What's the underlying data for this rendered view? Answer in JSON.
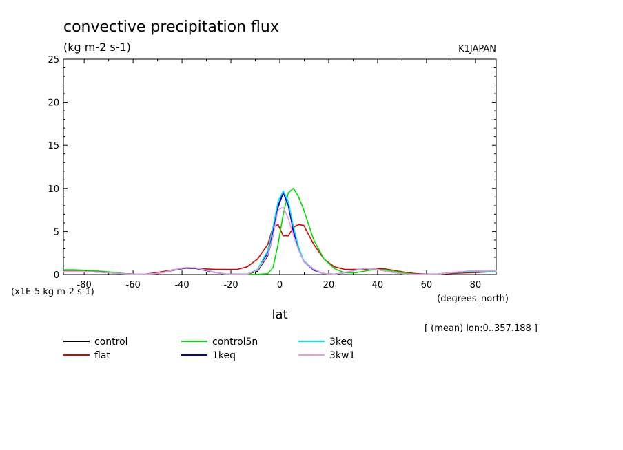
{
  "chart_data": {
    "type": "line",
    "title": "convective precipitation flux",
    "units": "(kg m-2 s-1)",
    "tag": "K1JAPAN",
    "scale_note": "(x1E-5 kg m-2 s-1)",
    "xlabel": "lat",
    "xunits": "(degrees_north)",
    "mean_note": "[ (mean) lon:0..357.188 ]",
    "xlim": [
      -88.5,
      88.5
    ],
    "ylim": [
      0,
      25
    ],
    "xticks": [
      -80,
      -60,
      -40,
      -20,
      0,
      20,
      40,
      60,
      80
    ],
    "xtick_labels": [
      "-80",
      "-60",
      "-40",
      "-20",
      "0",
      "20",
      "40",
      "60",
      "80"
    ],
    "yticks": [
      0,
      5,
      10,
      15,
      20,
      25
    ],
    "ytick_labels": [
      "0",
      "5",
      "10",
      "15",
      "20",
      "25"
    ],
    "grid": false,
    "legend_position": "below plot",
    "x": [
      -88.6,
      -84.4,
      -80.2,
      -76.0,
      -71.8,
      -67.7,
      -63.5,
      -59.3,
      -55.1,
      -50.9,
      -46.7,
      -42.6,
      -38.4,
      -34.2,
      -30.0,
      -25.8,
      -21.6,
      -17.4,
      -13.3,
      -9.1,
      -4.9,
      -2.8,
      -0.7,
      1.4,
      3.5,
      5.6,
      7.7,
      9.8,
      13.9,
      18.1,
      22.3,
      26.5,
      30.7,
      34.9,
      39.0,
      43.2,
      47.4,
      51.6,
      55.8,
      60.0,
      64.2,
      68.3,
      72.5,
      76.7,
      80.9,
      85.1,
      88.6
    ],
    "series": [
      {
        "name": "control",
        "color": "#000000",
        "values": [
          0.4,
          0.4,
          0.4,
          0.35,
          0.3,
          0.2,
          0.1,
          0.05,
          0.05,
          0.1,
          0.3,
          0.6,
          0.8,
          0.75,
          0.5,
          0.2,
          0.05,
          0.02,
          0.05,
          0.4,
          2.2,
          4.5,
          7.8,
          9.5,
          8.0,
          5.0,
          3.0,
          1.6,
          0.6,
          0.1,
          0.05,
          0.2,
          0.5,
          0.7,
          0.65,
          0.4,
          0.2,
          0.05,
          0.02,
          0.02,
          0.05,
          0.15,
          0.25,
          0.3,
          0.35,
          0.35,
          0.35
        ]
      },
      {
        "name": "flat",
        "color": "#dd0000",
        "values": [
          0.3,
          0.3,
          0.3,
          0.3,
          0.25,
          0.2,
          0.1,
          0.05,
          0.05,
          0.2,
          0.4,
          0.6,
          0.75,
          0.7,
          0.65,
          0.6,
          0.6,
          0.6,
          0.9,
          1.8,
          3.5,
          5.5,
          5.8,
          4.5,
          4.5,
          5.5,
          5.8,
          5.7,
          3.5,
          1.8,
          0.9,
          0.6,
          0.6,
          0.6,
          0.7,
          0.65,
          0.45,
          0.25,
          0.1,
          0.05,
          0.05,
          0.1,
          0.15,
          0.2,
          0.25,
          0.3,
          0.3
        ]
      },
      {
        "name": "control5n",
        "color": "#00dd00",
        "values": [
          0.55,
          0.55,
          0.5,
          0.45,
          0.35,
          0.25,
          0.1,
          0.05,
          0.05,
          0.1,
          0.3,
          0.6,
          0.75,
          0.7,
          0.45,
          0.2,
          0.05,
          0.02,
          0.02,
          0.02,
          0.1,
          0.8,
          3.5,
          7.0,
          9.5,
          10.0,
          9.0,
          7.5,
          4.0,
          1.8,
          0.7,
          0.2,
          0.2,
          0.4,
          0.6,
          0.55,
          0.35,
          0.15,
          0.05,
          0.02,
          0.05,
          0.15,
          0.25,
          0.35,
          0.4,
          0.45,
          0.45
        ]
      },
      {
        "name": "1keq",
        "color": "#0000dd",
        "values": [
          0.35,
          0.35,
          0.35,
          0.3,
          0.25,
          0.15,
          0.08,
          0.05,
          0.05,
          0.1,
          0.3,
          0.55,
          0.75,
          0.7,
          0.45,
          0.2,
          0.05,
          0.02,
          0.05,
          0.5,
          2.5,
          5.0,
          8.0,
          9.5,
          8.0,
          5.0,
          3.0,
          1.5,
          0.5,
          0.1,
          0.05,
          0.2,
          0.5,
          0.7,
          0.65,
          0.4,
          0.2,
          0.05,
          0.02,
          0.02,
          0.05,
          0.15,
          0.25,
          0.3,
          0.35,
          0.35,
          0.35
        ]
      },
      {
        "name": "3keq",
        "color": "#00e5e5",
        "values": [
          0.35,
          0.35,
          0.35,
          0.3,
          0.25,
          0.15,
          0.08,
          0.05,
          0.05,
          0.1,
          0.3,
          0.6,
          0.8,
          0.75,
          0.5,
          0.2,
          0.05,
          0.02,
          0.05,
          0.6,
          2.8,
          5.5,
          8.5,
          9.7,
          8.5,
          5.5,
          3.2,
          1.6,
          0.6,
          0.1,
          0.05,
          0.2,
          0.5,
          0.7,
          0.65,
          0.4,
          0.2,
          0.05,
          0.02,
          0.02,
          0.05,
          0.15,
          0.25,
          0.3,
          0.35,
          0.35,
          0.35
        ]
      },
      {
        "name": "3kw1",
        "color": "#ee99dd",
        "values": [
          0.35,
          0.35,
          0.35,
          0.3,
          0.25,
          0.15,
          0.08,
          0.05,
          0.05,
          0.1,
          0.3,
          0.6,
          0.8,
          0.75,
          0.5,
          0.2,
          0.05,
          0.02,
          0.05,
          0.5,
          2.3,
          4.5,
          7.5,
          7.8,
          6.5,
          4.5,
          2.8,
          1.5,
          0.6,
          0.1,
          0.05,
          0.2,
          0.5,
          0.7,
          0.65,
          0.4,
          0.2,
          0.05,
          0.02,
          0.02,
          0.05,
          0.15,
          0.3,
          0.4,
          0.45,
          0.45,
          0.45
        ]
      }
    ]
  }
}
